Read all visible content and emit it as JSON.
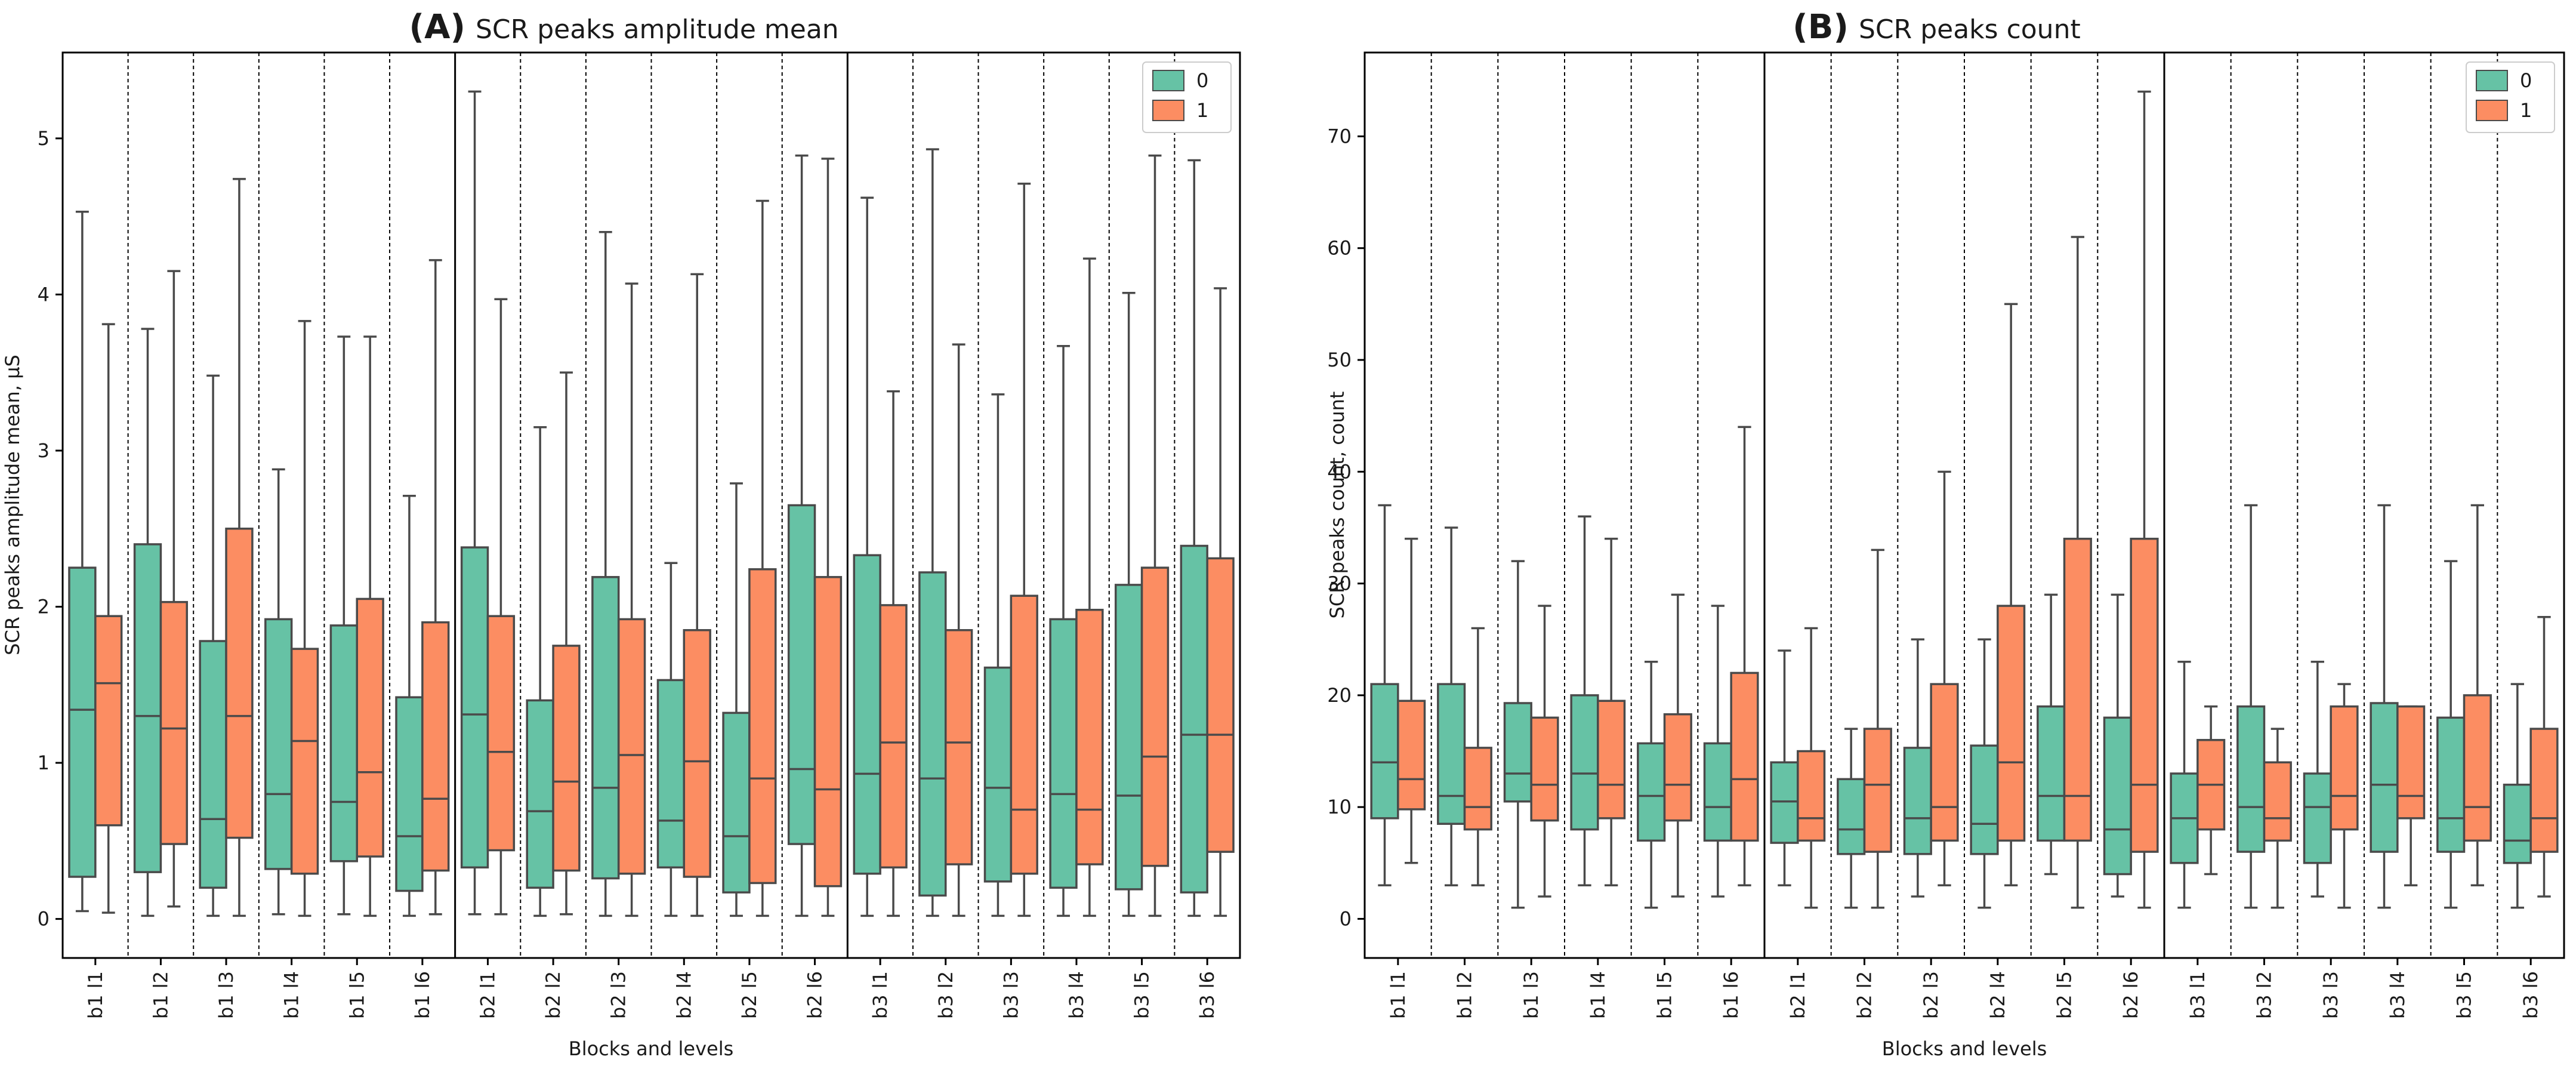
{
  "colors": {
    "group0": "#66c2a5",
    "group1": "#fc8d62",
    "whisker": "#4a4a4a",
    "axis": "#000000"
  },
  "chart_data": [
    {
      "type": "box",
      "panel": "(A)",
      "title": "SCR peaks amplitude mean",
      "xlabel": "Blocks and levels",
      "ylabel": "SCR peaks amplitude mean, µS",
      "ylim": [
        -0.25,
        5.55
      ],
      "yticks": [
        0,
        1,
        2,
        3,
        4,
        5
      ],
      "legend": {
        "position": "top-right",
        "labels": [
          "0",
          "1"
        ]
      },
      "categories": [
        "b1 l1",
        "b1 l2",
        "b1 l3",
        "b1 l4",
        "b1 l5",
        "b1 l6",
        "b2 l1",
        "b2 l2",
        "b2 l3",
        "b2 l4",
        "b2 l5",
        "b2 l6",
        "b3 l1",
        "b3 l2",
        "b3 l3",
        "b3 l4",
        "b3 l5",
        "b3 l6"
      ],
      "series": [
        {
          "name": "0",
          "boxes": [
            [
              0.05,
              0.27,
              1.34,
              2.25,
              4.53
            ],
            [
              0.02,
              0.3,
              1.3,
              2.4,
              3.78
            ],
            [
              0.02,
              0.2,
              0.64,
              1.78,
              3.48
            ],
            [
              0.03,
              0.32,
              0.8,
              1.92,
              2.88
            ],
            [
              0.03,
              0.37,
              0.75,
              1.88,
              3.73
            ],
            [
              0.02,
              0.18,
              0.53,
              1.42,
              2.71
            ],
            [
              0.03,
              0.33,
              1.31,
              2.38,
              5.3
            ],
            [
              0.02,
              0.2,
              0.69,
              1.4,
              3.15
            ],
            [
              0.02,
              0.26,
              0.84,
              2.19,
              4.4
            ],
            [
              0.02,
              0.33,
              0.63,
              1.53,
              2.28
            ],
            [
              0.02,
              0.17,
              0.53,
              1.32,
              2.79
            ],
            [
              0.02,
              0.48,
              0.96,
              2.65,
              4.89
            ],
            [
              0.02,
              0.29,
              0.93,
              2.33,
              4.62
            ],
            [
              0.02,
              0.15,
              0.9,
              2.22,
              4.93
            ],
            [
              0.02,
              0.24,
              0.84,
              1.61,
              3.36
            ],
            [
              0.02,
              0.2,
              0.8,
              1.92,
              3.67
            ],
            [
              0.02,
              0.19,
              0.79,
              2.14,
              4.01
            ],
            [
              0.02,
              0.17,
              1.18,
              2.39,
              4.86
            ]
          ]
        },
        {
          "name": "1",
          "boxes": [
            [
              0.04,
              0.6,
              1.51,
              1.94,
              3.81
            ],
            [
              0.08,
              0.48,
              1.22,
              2.03,
              4.15
            ],
            [
              0.02,
              0.52,
              1.3,
              2.5,
              4.74
            ],
            [
              0.02,
              0.29,
              1.14,
              1.73,
              3.83
            ],
            [
              0.02,
              0.4,
              0.94,
              2.05,
              3.73
            ],
            [
              0.03,
              0.31,
              0.77,
              1.9,
              4.22
            ],
            [
              0.03,
              0.44,
              1.07,
              1.94,
              3.97
            ],
            [
              0.03,
              0.31,
              0.88,
              1.75,
              3.5
            ],
            [
              0.02,
              0.29,
              1.05,
              1.92,
              4.07
            ],
            [
              0.02,
              0.27,
              1.01,
              1.85,
              4.13
            ],
            [
              0.02,
              0.23,
              0.9,
              2.24,
              4.6
            ],
            [
              0.02,
              0.21,
              0.83,
              2.19,
              4.87
            ],
            [
              0.02,
              0.33,
              1.13,
              2.01,
              3.38
            ],
            [
              0.02,
              0.35,
              1.13,
              1.85,
              3.68
            ],
            [
              0.02,
              0.29,
              0.7,
              2.07,
              4.71
            ],
            [
              0.02,
              0.35,
              0.7,
              1.98,
              4.23
            ],
            [
              0.02,
              0.34,
              1.04,
              2.25,
              4.89
            ],
            [
              0.02,
              0.43,
              1.18,
              2.31,
              4.04
            ]
          ]
        }
      ]
    },
    {
      "type": "box",
      "panel": "(B)",
      "title": "SCR peaks count",
      "xlabel": "Blocks and levels",
      "ylabel": "SCR peaks count, count",
      "ylim": [
        -3.5,
        77.5
      ],
      "yticks": [
        0,
        10,
        20,
        30,
        40,
        50,
        60,
        70
      ],
      "legend": {
        "position": "top-right",
        "labels": [
          "0",
          "1"
        ]
      },
      "categories": [
        "b1 l1",
        "b1 l2",
        "b1 l3",
        "b1 l4",
        "b1 l5",
        "b1 l6",
        "b2 l1",
        "b2 l2",
        "b2 l3",
        "b2 l4",
        "b2 l5",
        "b2 l6",
        "b3 l1",
        "b3 l2",
        "b3 l3",
        "b3 l4",
        "b3 l5",
        "b3 l6"
      ],
      "series": [
        {
          "name": "0",
          "boxes": [
            [
              3,
              9,
              14,
              21,
              37
            ],
            [
              3,
              8.5,
              11,
              21,
              35
            ],
            [
              1,
              10.5,
              13,
              19.3,
              32
            ],
            [
              3,
              8,
              13,
              20,
              36
            ],
            [
              1,
              7,
              11,
              15.7,
              23
            ],
            [
              2,
              7,
              10,
              15.7,
              28
            ],
            [
              3,
              6.8,
              10.5,
              14,
              24
            ],
            [
              1,
              5.8,
              8,
              12.5,
              17
            ],
            [
              2,
              5.8,
              9,
              15.3,
              25
            ],
            [
              1,
              5.8,
              8.5,
              15.5,
              25
            ],
            [
              4,
              7,
              11,
              19,
              29
            ],
            [
              2,
              4,
              8,
              18,
              29
            ],
            [
              1,
              5,
              9,
              13,
              23
            ],
            [
              1,
              6,
              10,
              19,
              37
            ],
            [
              2,
              5,
              10,
              13,
              23
            ],
            [
              1,
              6,
              12,
              19.3,
              37
            ],
            [
              1,
              6,
              9,
              18,
              32
            ],
            [
              1,
              5,
              7,
              12,
              21
            ]
          ]
        },
        {
          "name": "1",
          "boxes": [
            [
              5,
              9.8,
              12.5,
              19.5,
              34
            ],
            [
              3,
              8,
              10,
              15.3,
              26
            ],
            [
              2,
              8.8,
              12,
              18,
              28
            ],
            [
              3,
              9,
              12,
              19.5,
              34
            ],
            [
              2,
              8.8,
              12,
              18.3,
              29
            ],
            [
              3,
              7,
              12.5,
              22,
              44
            ],
            [
              1,
              7,
              9,
              15,
              26
            ],
            [
              1,
              6,
              12,
              17,
              33
            ],
            [
              3,
              7,
              10,
              21,
              40
            ],
            [
              3,
              7,
              14,
              28,
              55
            ],
            [
              1,
              7,
              11,
              34,
              61
            ],
            [
              1,
              6,
              12,
              34,
              74
            ],
            [
              4,
              8,
              12,
              16,
              19
            ],
            [
              1,
              7,
              9,
              14,
              17
            ],
            [
              1,
              8,
              11,
              19,
              21
            ],
            [
              3,
              9,
              11,
              19,
              19
            ],
            [
              3,
              7,
              10,
              20,
              37
            ],
            [
              2,
              6,
              9,
              17,
              27
            ]
          ]
        }
      ]
    }
  ]
}
